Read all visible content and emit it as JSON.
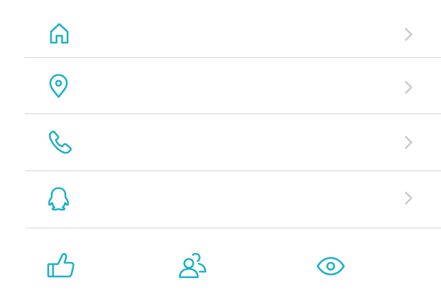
{
  "list": {
    "items": [
      {
        "icon": "home-icon",
        "label": ""
      },
      {
        "icon": "location-pin-icon",
        "label": ""
      },
      {
        "icon": "phone-icon",
        "label": ""
      },
      {
        "icon": "qq-penguin-icon",
        "label": ""
      }
    ]
  },
  "bottom_bar": {
    "items": [
      {
        "icon": "thumbs-up-icon"
      },
      {
        "icon": "users-icon"
      },
      {
        "icon": "eye-icon"
      }
    ]
  },
  "colors": {
    "accent": "#19b0c8",
    "chevron": "#c9c9c9",
    "divider": "#d2d2d2",
    "background": "#ffffff"
  }
}
